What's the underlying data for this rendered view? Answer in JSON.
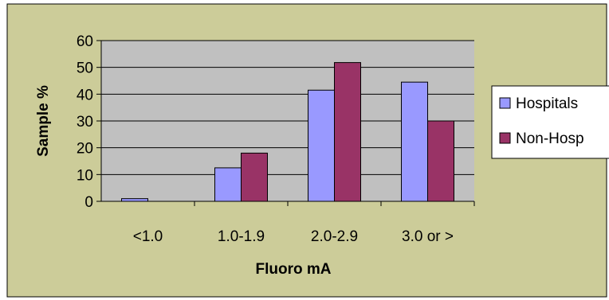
{
  "chart_data": {
    "type": "bar",
    "xlabel": "Fluoro mA",
    "ylabel": "Sample %",
    "categories": [
      "<1.0",
      "1.0-1.9",
      "2.0-2.9",
      "3.0 or >"
    ],
    "series": [
      {
        "name": "Hospitals",
        "values": [
          1,
          12.5,
          41.5,
          44.5
        ],
        "color": "#9999ff"
      },
      {
        "name": "Non-Hosp",
        "values": [
          0,
          18,
          51.8,
          30
        ],
        "color": "#993366"
      }
    ],
    "ylim": [
      0,
      60
    ],
    "yticks": [
      "0",
      "10",
      "20",
      "30",
      "40",
      "50",
      "60"
    ],
    "grid": true,
    "legend_position": "right"
  },
  "colors": {
    "chart_background": "#cccc99",
    "plot_background": "#c0c0c0",
    "border": "#000000"
  }
}
